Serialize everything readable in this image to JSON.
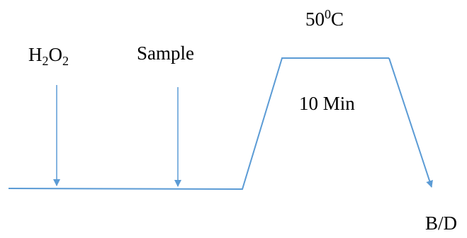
{
  "colors": {
    "line": "#5b9bd5",
    "text": "#000000"
  },
  "labels": {
    "h2o2": {
      "base": "H",
      "sub1": "2",
      "mid": "O",
      "sub2": "2"
    },
    "sample": "Sample",
    "temperature": {
      "value": "50",
      "sup": "0",
      "unit": "C"
    },
    "duration": "10 Min",
    "end": "B/D"
  }
}
